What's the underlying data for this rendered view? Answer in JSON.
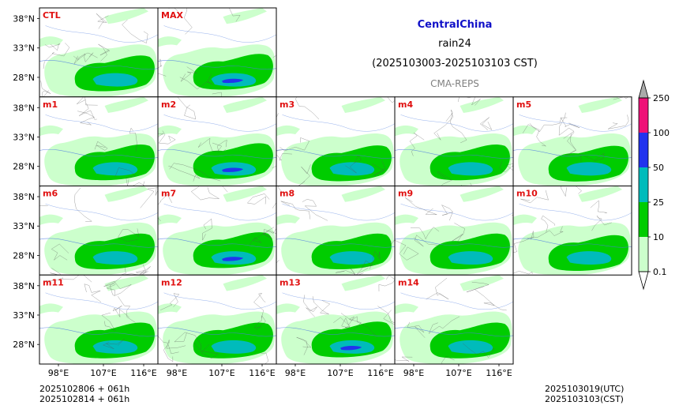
{
  "header": {
    "region": "CentralChina",
    "variable": "rain24",
    "period": "(2025103003-2025103103 CST)",
    "model": "CMA-REPS"
  },
  "colors": {
    "region": "#1010c8",
    "panel_label": "#e01010",
    "model": "#808080",
    "c1": "#ccffcc",
    "c2": "#00cc00",
    "c3": "#00bbbb",
    "c4": "#2233ee",
    "c5": "#ee1177",
    "c6": "#aaaaaa"
  },
  "panels": [
    {
      "label": "CTL",
      "row": 0,
      "col": 0
    },
    {
      "label": "MAX",
      "row": 0,
      "col": 1
    },
    {
      "label": "m1",
      "row": 1,
      "col": 0
    },
    {
      "label": "m2",
      "row": 1,
      "col": 1
    },
    {
      "label": "m3",
      "row": 1,
      "col": 2
    },
    {
      "label": "m4",
      "row": 1,
      "col": 3
    },
    {
      "label": "m5",
      "row": 1,
      "col": 4
    },
    {
      "label": "m6",
      "row": 2,
      "col": 0
    },
    {
      "label": "m7",
      "row": 2,
      "col": 1
    },
    {
      "label": "m8",
      "row": 2,
      "col": 2
    },
    {
      "label": "m9",
      "row": 2,
      "col": 3
    },
    {
      "label": "m10",
      "row": 2,
      "col": 4
    },
    {
      "label": "m11",
      "row": 3,
      "col": 0
    },
    {
      "label": "m12",
      "row": 3,
      "col": 1
    },
    {
      "label": "m13",
      "row": 3,
      "col": 2
    },
    {
      "label": "m14",
      "row": 3,
      "col": 3
    }
  ],
  "chart_data": {
    "type": "heatmap",
    "title": "CentralChina rain24",
    "y_ticks": [
      "38°N",
      "33°N",
      "28°N"
    ],
    "x_ticks": [
      "98°E",
      "107°E",
      "116°E"
    ],
    "colorbar_levels": [
      0.1,
      10,
      25,
      50,
      100,
      250
    ],
    "colorbar_labels": [
      "0.1",
      "10",
      "25",
      "50",
      "100",
      "250"
    ]
  },
  "footer": {
    "left1": "2025102806  +  061h",
    "left2": "2025102814  +  061h",
    "right1": "2025103019(UTC)",
    "right2": "2025103103(CST)"
  }
}
